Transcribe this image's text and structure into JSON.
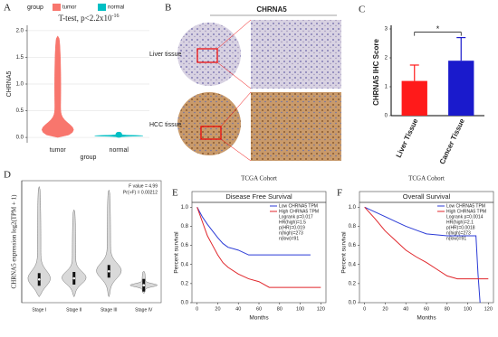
{
  "panel_labels": [
    "A",
    "B",
    "C",
    "D",
    "E",
    "F"
  ],
  "image_panel": {
    "title": "CHRNA5",
    "rows": [
      "Liver tissue",
      "HCC tissue"
    ]
  },
  "chart_data": [
    {
      "type": "violin",
      "ylabel": "CHRNA5",
      "xlabel": "group",
      "legend_title": "group",
      "annotations": [
        "T-test, p<2.2x10"
      ],
      "annotation_exponent": "-16",
      "categories": [
        "tumor",
        "normal"
      ],
      "colors": [
        "#F8766D",
        "#00BFC4"
      ],
      "values": [
        0.1,
        0.03
      ],
      "min": [
        0,
        0
      ],
      "max": [
        1.9,
        0.1
      ],
      "ylim": [
        -0.1,
        2.1
      ],
      "yticks": [
        {
          "value": 0,
          "label": "0.0"
        },
        {
          "value": 0.5,
          "label": "0.5"
        },
        {
          "value": 1,
          "label": "1.0"
        },
        {
          "value": 1.5,
          "label": "1.5"
        },
        {
          "value": 2,
          "label": "2.0"
        }
      ],
      "legend": true
    },
    {
      "type": "bar",
      "ylabel": "CHRNA5 IHC Score",
      "categories": [
        "Liver Tissue",
        "Cancer Tissue"
      ],
      "colors": [
        "#ff1a1a",
        "#1a1acc"
      ],
      "values": [
        1.2,
        1.9
      ],
      "errors": [
        0.55,
        0.8
      ],
      "significance": "*",
      "ylim": [
        0,
        3
      ],
      "yticks": [
        0,
        1,
        2,
        3
      ]
    },
    {
      "type": "violin",
      "ylabel": "CHRNA5 expression log2(TPM + 1)",
      "annotations": [
        "F value = 4.99",
        "Pr(>F) = 0.00212"
      ],
      "categories": [
        "Stage I",
        "Stage II",
        "Stage III",
        "Stage IV"
      ],
      "colors": [
        "#d9d9d9",
        "#d9d9d9",
        "#d9d9d9",
        "#d9d9d9"
      ],
      "values": [
        1.5,
        1.6,
        2.2,
        1.0
      ],
      "min": [
        0,
        0,
        0,
        0.3
      ],
      "max": [
        9.5,
        7.5,
        9.2,
        2.2
      ],
      "ylim": [
        -0.5,
        10
      ],
      "legend": false
    },
    {
      "type": "survival",
      "supertitle": "TCGA Cohort",
      "title": "Disease Free Survival",
      "xlabel": "Months",
      "ylabel": "Percent survival",
      "xlim": [
        -5,
        125
      ],
      "xticks": [
        0,
        20,
        40,
        60,
        80,
        100,
        120
      ],
      "ylim": [
        0,
        1.05
      ],
      "yticks": [
        {
          "value": 0,
          "label": "0.0"
        },
        {
          "value": 0.2,
          "label": "0.2"
        },
        {
          "value": 0.4,
          "label": "0.4"
        },
        {
          "value": 0.6,
          "label": "0.6"
        },
        {
          "value": 0.8,
          "label": "0.8"
        },
        {
          "value": 1,
          "label": "1.0"
        }
      ],
      "stats": [
        "Logrank p=0.017",
        "HR(high)=1.5",
        "p(HR)=0.019",
        "n(high)=273",
        "n(low)=91"
      ],
      "series": [
        {
          "name": "Low CHRNA5 TPM",
          "color": "#2b3bd6",
          "x": [
            0,
            5,
            10,
            15,
            20,
            25,
            30,
            40,
            50,
            60,
            80,
            110
          ],
          "values": [
            1,
            0.9,
            0.82,
            0.75,
            0.68,
            0.62,
            0.58,
            0.55,
            0.5,
            0.5,
            0.5,
            0.5
          ]
        },
        {
          "name": "High CHRNA5 TPM",
          "color": "#e0262b",
          "x": [
            0,
            5,
            10,
            15,
            20,
            25,
            30,
            40,
            50,
            60,
            70,
            80,
            120
          ],
          "values": [
            1,
            0.85,
            0.7,
            0.6,
            0.5,
            0.42,
            0.37,
            0.3,
            0.25,
            0.22,
            0.16,
            0.16,
            0.16
          ]
        }
      ]
    },
    {
      "type": "survival",
      "supertitle": "TCGA Cohort",
      "title": "Overall Survival",
      "xlabel": "Months",
      "ylabel": "Percent survival",
      "xlim": [
        -5,
        125
      ],
      "xticks": [
        0,
        20,
        40,
        60,
        80,
        100,
        120
      ],
      "ylim": [
        0,
        1.05
      ],
      "yticks": [
        {
          "value": 0,
          "label": "0.0"
        },
        {
          "value": 0.2,
          "label": "0.2"
        },
        {
          "value": 0.4,
          "label": "0.4"
        },
        {
          "value": 0.6,
          "label": "0.6"
        },
        {
          "value": 0.8,
          "label": "0.8"
        },
        {
          "value": 1,
          "label": "1.0"
        }
      ],
      "stats": [
        "Logrank p=0.0014",
        "HR(high)=2.1",
        "p(HR)=0.0018",
        "n(high)=273",
        "n(low)=91"
      ],
      "series": [
        {
          "name": "Low CHRNA5 TPM",
          "color": "#2b3bd6",
          "x": [
            0,
            10,
            20,
            30,
            40,
            50,
            60,
            80,
            100,
            108,
            110,
            112
          ],
          "values": [
            1,
            0.95,
            0.9,
            0.85,
            0.8,
            0.76,
            0.72,
            0.7,
            0.7,
            0.7,
            0.3,
            0
          ]
        },
        {
          "name": "High CHRNA5 TPM",
          "color": "#e0262b",
          "x": [
            0,
            10,
            20,
            30,
            40,
            50,
            60,
            70,
            80,
            90,
            120
          ],
          "values": [
            1,
            0.88,
            0.75,
            0.65,
            0.55,
            0.48,
            0.42,
            0.35,
            0.28,
            0.25,
            0.25
          ]
        }
      ]
    }
  ]
}
